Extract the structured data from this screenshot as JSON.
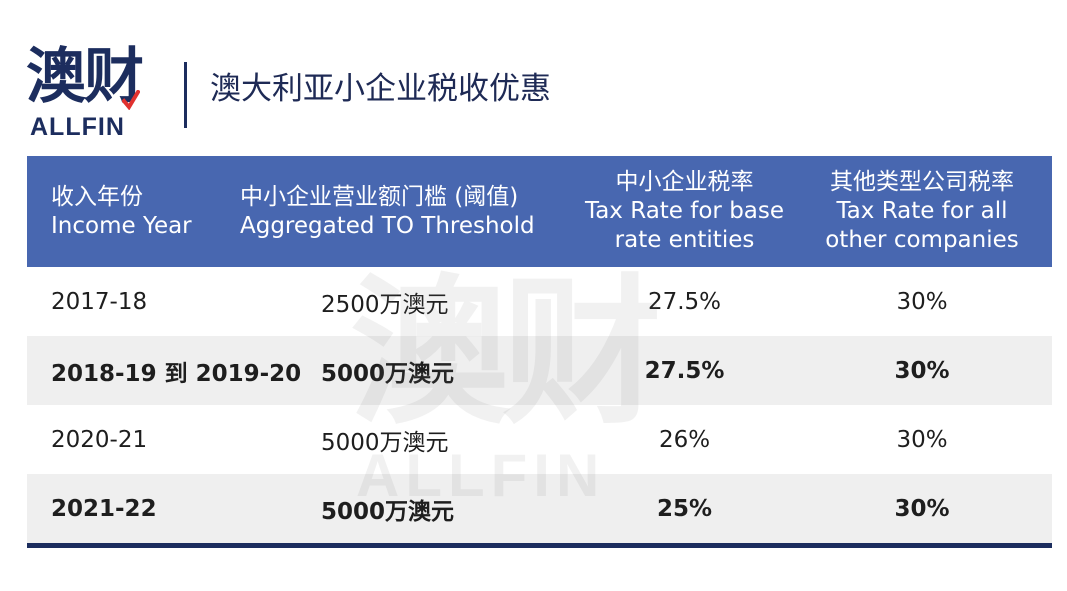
{
  "brand": {
    "logo_cn": "澳财",
    "logo_en": "ALLFIN",
    "accent_color": "#1c2d5e",
    "check_color": "#e0312f"
  },
  "title": "澳大利亚小企业税收优惠",
  "table": {
    "header_color": "#4867b0",
    "headers": [
      {
        "cn": "收入年份",
        "en": [
          "Income Year"
        ]
      },
      {
        "cn": "中小企业营业额门槛 (阈值)",
        "en": [
          "Aggregated TO Threshold"
        ]
      },
      {
        "cn": "中小企业税率",
        "en": [
          "Tax Rate for base",
          "rate entities"
        ]
      },
      {
        "cn": "其他类型公司税率",
        "en": [
          "Tax Rate for all",
          "other companies"
        ]
      }
    ],
    "rows": [
      {
        "year": "2017-18",
        "threshold": "2500万澳元",
        "base_rate": "27.5%",
        "other_rate": "30%"
      },
      {
        "year": "2018-19 到 2019-20",
        "threshold": "5000万澳元",
        "base_rate": "27.5%",
        "other_rate": "30%"
      },
      {
        "year": "2020-21",
        "threshold": "5000万澳元",
        "base_rate": "26%",
        "other_rate": "30%"
      },
      {
        "year": "2021-22",
        "threshold": "5000万澳元",
        "base_rate": "25%",
        "other_rate": "30%"
      }
    ]
  },
  "watermark": {
    "cn": "澳财",
    "en": "ALLFIN"
  }
}
